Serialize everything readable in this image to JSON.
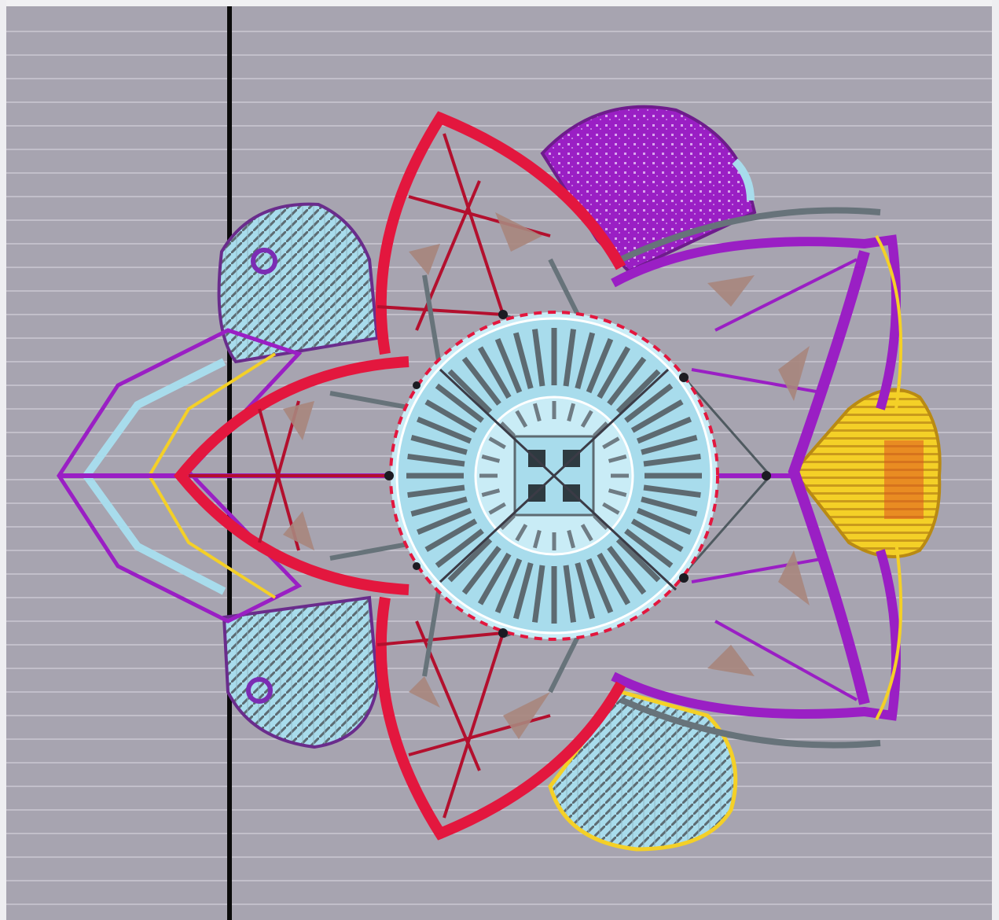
{
  "drawing": {
    "colors": {
      "paper": "#a7a4b0",
      "paper_lines": "#c2bfca",
      "margin_line": "#0b0b0b",
      "red": "#e3173e",
      "dark_red": "#b3102e",
      "purple": "#9a1fc4",
      "light_blue": "#a8dcec",
      "pale_blue": "#c9ecf6",
      "yellow": "#f4d027",
      "gray": "#67737a",
      "brown": "#a8867d"
    },
    "petals": {
      "light_blue_count": 3,
      "purple_count": 1,
      "yellow_count": 1
    }
  }
}
